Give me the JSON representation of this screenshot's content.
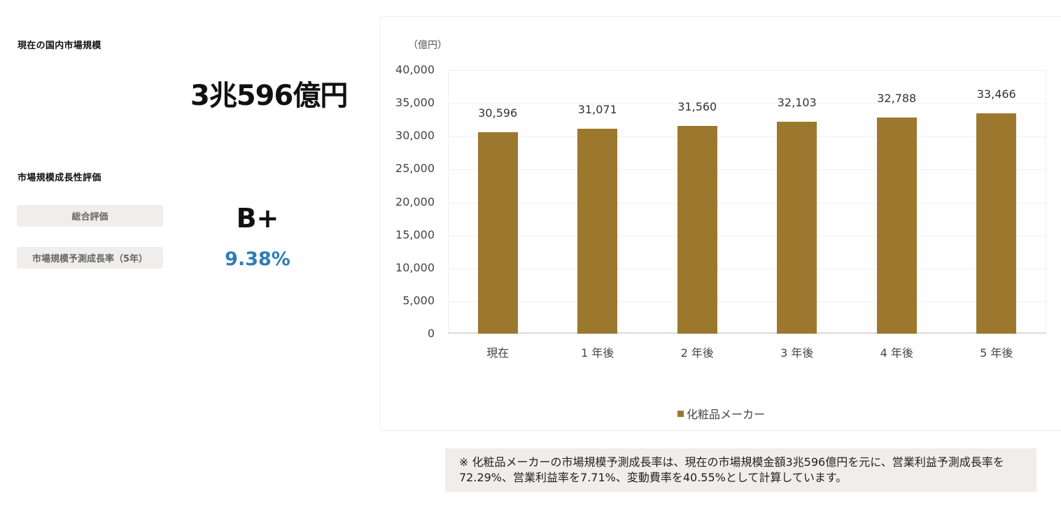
{
  "summary": {
    "current_label": "現在の国内市場規模",
    "current_value": "3兆596億円",
    "growth_label": "市場規模成長性評価",
    "total_eval_label": "総合評価",
    "total_eval_value": "B+",
    "rate_label": "市場規模予測成長率（5年）",
    "rate_value": "9.38%"
  },
  "chart_data": {
    "type": "bar",
    "title": "",
    "unit_label": "（億円）",
    "xlabel": "",
    "ylabel": "（億円）",
    "categories": [
      "現在",
      "1 年後",
      "2 年後",
      "3 年後",
      "4 年後",
      "5 年後"
    ],
    "series": [
      {
        "name": "化粧品メーカー",
        "color": "#9c782e",
        "values": [
          30596,
          31071,
          31560,
          32103,
          32788,
          33466
        ]
      }
    ],
    "value_labels": [
      "30,596",
      "31,071",
      "31,560",
      "32,103",
      "32,788",
      "33,466"
    ],
    "yticks": [
      "40,000",
      "35,000",
      "30,000",
      "25,000",
      "20,000",
      "15,000",
      "10,000",
      "5,000",
      "0"
    ],
    "ylim": [
      0,
      40000
    ],
    "grid": true,
    "legend_position": "bottom"
  },
  "legend": {
    "label": "化粧品メーカー"
  },
  "note": "※ 化粧品メーカーの市場規模予測成長率は、現在の市場規模金額3兆596億円を元に、営業利益予測成長率を72.29%、営業利益率を7.71%、変動費率を40.55%として計算しています。"
}
